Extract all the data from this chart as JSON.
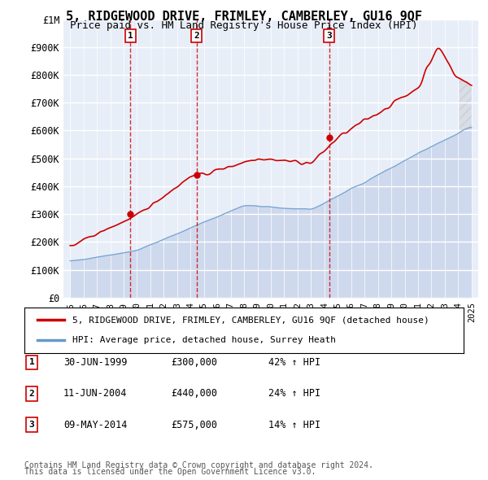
{
  "title": "5, RIDGEWOOD DRIVE, FRIMLEY, CAMBERLEY, GU16 9QF",
  "subtitle": "Price paid vs. HM Land Registry's House Price Index (HPI)",
  "ylabel": "",
  "ylim": [
    0,
    1000000
  ],
  "yticks": [
    0,
    100000,
    200000,
    300000,
    400000,
    500000,
    600000,
    700000,
    800000,
    900000,
    1000000
  ],
  "ytick_labels": [
    "£0",
    "£100K",
    "£200K",
    "£300K",
    "£400K",
    "£500K",
    "£600K",
    "£700K",
    "£800K",
    "£900K",
    "£1M"
  ],
  "background_color": "#f0f4ff",
  "plot_bg_color": "#e8eef8",
  "grid_color": "#ffffff",
  "red_line_color": "#cc0000",
  "blue_line_color": "#6699cc",
  "blue_fill_color": "#aabbdd",
  "transactions": [
    {
      "date_num": 1999.5,
      "price": 300000,
      "label": "1"
    },
    {
      "date_num": 2004.44,
      "price": 440000,
      "label": "2"
    },
    {
      "date_num": 2014.36,
      "price": 575000,
      "label": "3"
    }
  ],
  "legend_line1": "5, RIDGEWOOD DRIVE, FRIMLEY, CAMBERLEY, GU16 9QF (detached house)",
  "legend_line2": "HPI: Average price, detached house, Surrey Heath",
  "table_rows": [
    {
      "num": "1",
      "date": "30-JUN-1999",
      "price": "£300,000",
      "pct": "42% ↑ HPI"
    },
    {
      "num": "2",
      "date": "11-JUN-2004",
      "price": "£440,000",
      "pct": "24% ↑ HPI"
    },
    {
      "num": "3",
      "date": "09-MAY-2014",
      "price": "£575,000",
      "pct": "14% ↑ HPI"
    }
  ],
  "footnote1": "Contains HM Land Registry data © Crown copyright and database right 2024.",
  "footnote2": "This data is licensed under the Open Government Licence v3.0."
}
